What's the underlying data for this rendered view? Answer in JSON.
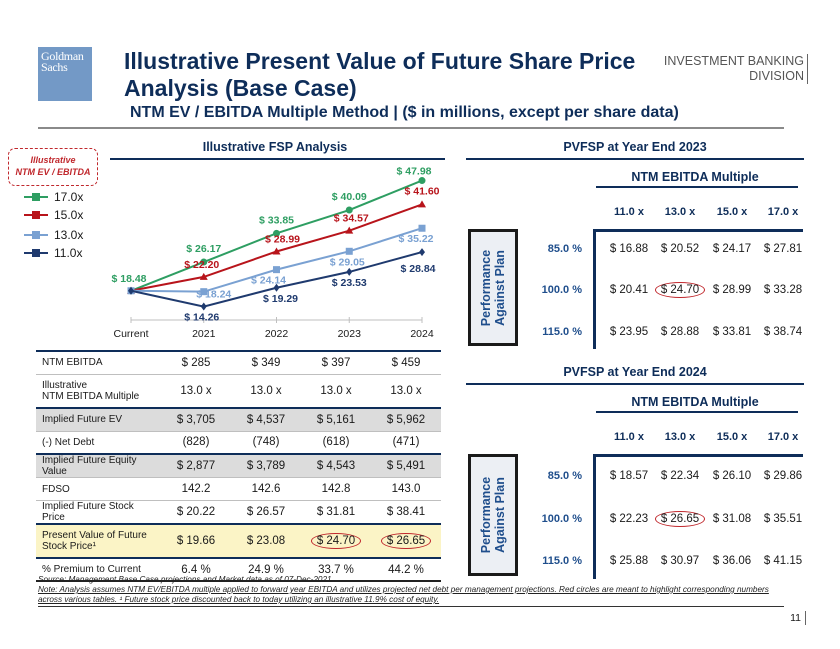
{
  "header": {
    "logo_line1": "Goldman",
    "logo_line2": "Sachs",
    "title": "Illustrative Present Value of Future Share Price Analysis (Base Case)",
    "subtitle": "NTM EV / EBITDA Multiple Method | ($ in millions, except per share data)",
    "division_line1": "INVESTMENT BANKING",
    "division_line2": "DIVISION"
  },
  "illustrative_box": {
    "line1": "Illustrative",
    "line2": "NTM EV / EBITDA"
  },
  "colors": {
    "navy": "#0e2d59",
    "green": "#2e9e62",
    "red": "#b8141b",
    "light_blue": "#7aa1d2",
    "dark_blue": "#1f3a6e",
    "highlight_red": "#c0282d",
    "yellow": "#fbf4c6"
  },
  "chart_data": {
    "type": "line",
    "title": "Illustrative FSP Analysis",
    "categories": [
      "Current",
      "2021",
      "2022",
      "2023",
      "2024"
    ],
    "xlabel": "",
    "ylabel": "",
    "grid": false,
    "legend_position": "left",
    "series": [
      {
        "name": "17.0x",
        "color": "#2e9e62",
        "marker": "circle",
        "values": [
          18.48,
          26.17,
          33.85,
          40.09,
          47.98
        ],
        "labels": [
          "$ 18.48",
          "$ 26.17",
          "$ 33.85",
          "$ 40.09",
          "$ 47.98"
        ]
      },
      {
        "name": "15.0x",
        "color": "#b8141b",
        "marker": "triangle",
        "values": [
          18.48,
          22.2,
          28.99,
          34.57,
          41.6
        ],
        "labels": [
          "",
          "$ 22.20",
          "$ 28.99",
          "$ 34.57",
          "$ 41.60"
        ]
      },
      {
        "name": "13.0x",
        "color": "#7aa1d2",
        "marker": "square",
        "values": [
          18.48,
          18.24,
          24.14,
          29.05,
          35.22
        ],
        "labels": [
          "",
          "$ 18.24",
          "$ 24.14",
          "$ 29.05",
          "$ 35.22"
        ]
      },
      {
        "name": "11.0x",
        "color": "#1f3a6e",
        "marker": "diamond",
        "values": [
          18.48,
          14.26,
          19.29,
          23.53,
          28.84
        ],
        "labels": [
          "",
          "$ 14.26",
          "$ 19.29",
          "$ 23.53",
          "$ 28.84"
        ]
      }
    ],
    "ylim": [
      12,
      50
    ]
  },
  "left_table": {
    "rows": [
      {
        "label": "NTM EBITDA",
        "values": [
          "$ 285",
          "$ 349",
          "$ 397",
          "$ 459"
        ]
      },
      {
        "label": "Illustrative\nNTM EBITDA Multiple",
        "values": [
          "13.0 x",
          "13.0 x",
          "13.0 x",
          "13.0 x"
        ]
      },
      {
        "label": "Implied Future EV",
        "values": [
          "$ 3,705",
          "$ 4,537",
          "$ 5,161",
          "$ 5,962"
        ]
      },
      {
        "label": "(-) Net Debt",
        "values": [
          "(828)",
          "(748)",
          "(618)",
          "(471)"
        ]
      },
      {
        "label": "Implied Future Equity Value",
        "values": [
          "$ 2,877",
          "$ 3,789",
          "$ 4,543",
          "$ 5,491"
        ]
      },
      {
        "label": "FDSO",
        "values": [
          "142.2",
          "142.6",
          "142.8",
          "143.0"
        ]
      },
      {
        "label": "Implied Future Stock Price",
        "values": [
          "$ 20.22",
          "$ 26.57",
          "$ 31.81",
          "$ 38.41"
        ]
      },
      {
        "label": "Present Value of Future\nStock Price¹",
        "values": [
          "$ 19.66",
          "$ 23.08",
          "$ 24.70",
          "$ 26.65"
        ],
        "circled": [
          false,
          false,
          true,
          true
        ]
      },
      {
        "label": "% Premium to Current",
        "values": [
          "6.4 %",
          "24.9 %",
          "33.7 %",
          "44.2 %"
        ]
      }
    ]
  },
  "sensitivity_tables": [
    {
      "title": "PVFSP at Year End 2023",
      "col_header": "NTM EBITDA Multiple",
      "columns": [
        "11.0 x",
        "13.0 x",
        "15.0 x",
        "17.0 x"
      ],
      "row_header": "Performance\nAgainst Plan",
      "rows": [
        {
          "label": "85.0 %",
          "values": [
            "$ 16.88",
            "$ 20.52",
            "$ 24.17",
            "$ 27.81"
          ]
        },
        {
          "label": "100.0 %",
          "values": [
            "$ 20.41",
            "$ 24.70",
            "$ 28.99",
            "$ 33.28"
          ],
          "circled_index": 1
        },
        {
          "label": "115.0 %",
          "values": [
            "$ 23.95",
            "$ 28.88",
            "$ 33.81",
            "$ 38.74"
          ]
        }
      ]
    },
    {
      "title": "PVFSP at Year End 2024",
      "col_header": "NTM EBITDA Multiple",
      "columns": [
        "11.0 x",
        "13.0 x",
        "15.0 x",
        "17.0 x"
      ],
      "row_header": "Performance\nAgainst Plan",
      "rows": [
        {
          "label": "85.0 %",
          "values": [
            "$ 18.57",
            "$ 22.34",
            "$ 26.10",
            "$ 29.86"
          ]
        },
        {
          "label": "100.0 %",
          "values": [
            "$ 22.23",
            "$ 26.65",
            "$ 31.08",
            "$ 35.51"
          ],
          "circled_index": 1
        },
        {
          "label": "115.0 %",
          "values": [
            "$ 25.88",
            "$ 30.97",
            "$ 36.06",
            "$ 41.15"
          ]
        }
      ]
    }
  ],
  "footer": {
    "source": "Source:  Management Base Case projections and Market data as of 07-Dec-2021",
    "note": "Note: Analysis assumes NTM EV/EBITDA multiple applied to forward year EBITDA and utilizes projected net debt per management projections. Red circles are meant to highlight corresponding numbers across various tables. ¹ Future stock price discounted back to today utilizing an illustrative 11.9% cost of equity.",
    "page_number": "11"
  }
}
